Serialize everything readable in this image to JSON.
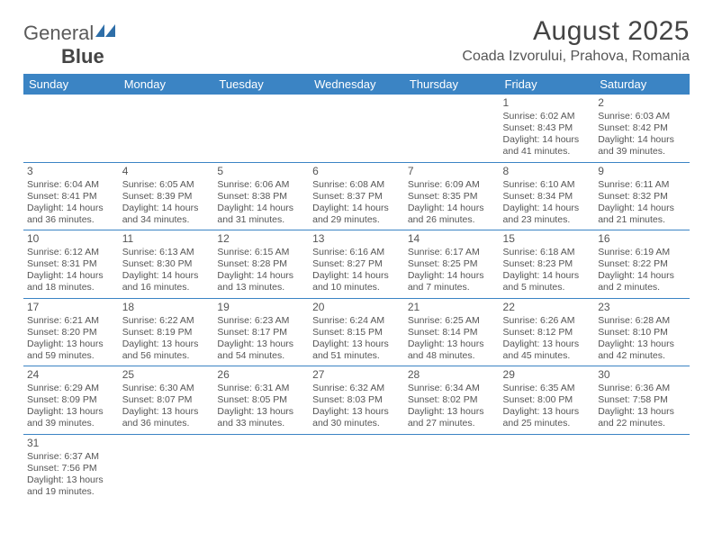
{
  "brand": {
    "part1": "General",
    "part2": "Blue"
  },
  "colors": {
    "header_bg": "#3b84c4",
    "header_text": "#ffffff",
    "rule": "#3b84c4",
    "text": "#555555",
    "title": "#444444",
    "background": "#ffffff"
  },
  "title": "August 2025",
  "location": "Coada Izvorului, Prahova, Romania",
  "weekdays": [
    "Sunday",
    "Monday",
    "Tuesday",
    "Wednesday",
    "Thursday",
    "Friday",
    "Saturday"
  ],
  "weeks": [
    [
      null,
      null,
      null,
      null,
      null,
      {
        "day": "1",
        "sunrise": "Sunrise: 6:02 AM",
        "sunset": "Sunset: 8:43 PM",
        "daylight": "Daylight: 14 hours and 41 minutes."
      },
      {
        "day": "2",
        "sunrise": "Sunrise: 6:03 AM",
        "sunset": "Sunset: 8:42 PM",
        "daylight": "Daylight: 14 hours and 39 minutes."
      }
    ],
    [
      {
        "day": "3",
        "sunrise": "Sunrise: 6:04 AM",
        "sunset": "Sunset: 8:41 PM",
        "daylight": "Daylight: 14 hours and 36 minutes."
      },
      {
        "day": "4",
        "sunrise": "Sunrise: 6:05 AM",
        "sunset": "Sunset: 8:39 PM",
        "daylight": "Daylight: 14 hours and 34 minutes."
      },
      {
        "day": "5",
        "sunrise": "Sunrise: 6:06 AM",
        "sunset": "Sunset: 8:38 PM",
        "daylight": "Daylight: 14 hours and 31 minutes."
      },
      {
        "day": "6",
        "sunrise": "Sunrise: 6:08 AM",
        "sunset": "Sunset: 8:37 PM",
        "daylight": "Daylight: 14 hours and 29 minutes."
      },
      {
        "day": "7",
        "sunrise": "Sunrise: 6:09 AM",
        "sunset": "Sunset: 8:35 PM",
        "daylight": "Daylight: 14 hours and 26 minutes."
      },
      {
        "day": "8",
        "sunrise": "Sunrise: 6:10 AM",
        "sunset": "Sunset: 8:34 PM",
        "daylight": "Daylight: 14 hours and 23 minutes."
      },
      {
        "day": "9",
        "sunrise": "Sunrise: 6:11 AM",
        "sunset": "Sunset: 8:32 PM",
        "daylight": "Daylight: 14 hours and 21 minutes."
      }
    ],
    [
      {
        "day": "10",
        "sunrise": "Sunrise: 6:12 AM",
        "sunset": "Sunset: 8:31 PM",
        "daylight": "Daylight: 14 hours and 18 minutes."
      },
      {
        "day": "11",
        "sunrise": "Sunrise: 6:13 AM",
        "sunset": "Sunset: 8:30 PM",
        "daylight": "Daylight: 14 hours and 16 minutes."
      },
      {
        "day": "12",
        "sunrise": "Sunrise: 6:15 AM",
        "sunset": "Sunset: 8:28 PM",
        "daylight": "Daylight: 14 hours and 13 minutes."
      },
      {
        "day": "13",
        "sunrise": "Sunrise: 6:16 AM",
        "sunset": "Sunset: 8:27 PM",
        "daylight": "Daylight: 14 hours and 10 minutes."
      },
      {
        "day": "14",
        "sunrise": "Sunrise: 6:17 AM",
        "sunset": "Sunset: 8:25 PM",
        "daylight": "Daylight: 14 hours and 7 minutes."
      },
      {
        "day": "15",
        "sunrise": "Sunrise: 6:18 AM",
        "sunset": "Sunset: 8:23 PM",
        "daylight": "Daylight: 14 hours and 5 minutes."
      },
      {
        "day": "16",
        "sunrise": "Sunrise: 6:19 AM",
        "sunset": "Sunset: 8:22 PM",
        "daylight": "Daylight: 14 hours and 2 minutes."
      }
    ],
    [
      {
        "day": "17",
        "sunrise": "Sunrise: 6:21 AM",
        "sunset": "Sunset: 8:20 PM",
        "daylight": "Daylight: 13 hours and 59 minutes."
      },
      {
        "day": "18",
        "sunrise": "Sunrise: 6:22 AM",
        "sunset": "Sunset: 8:19 PM",
        "daylight": "Daylight: 13 hours and 56 minutes."
      },
      {
        "day": "19",
        "sunrise": "Sunrise: 6:23 AM",
        "sunset": "Sunset: 8:17 PM",
        "daylight": "Daylight: 13 hours and 54 minutes."
      },
      {
        "day": "20",
        "sunrise": "Sunrise: 6:24 AM",
        "sunset": "Sunset: 8:15 PM",
        "daylight": "Daylight: 13 hours and 51 minutes."
      },
      {
        "day": "21",
        "sunrise": "Sunrise: 6:25 AM",
        "sunset": "Sunset: 8:14 PM",
        "daylight": "Daylight: 13 hours and 48 minutes."
      },
      {
        "day": "22",
        "sunrise": "Sunrise: 6:26 AM",
        "sunset": "Sunset: 8:12 PM",
        "daylight": "Daylight: 13 hours and 45 minutes."
      },
      {
        "day": "23",
        "sunrise": "Sunrise: 6:28 AM",
        "sunset": "Sunset: 8:10 PM",
        "daylight": "Daylight: 13 hours and 42 minutes."
      }
    ],
    [
      {
        "day": "24",
        "sunrise": "Sunrise: 6:29 AM",
        "sunset": "Sunset: 8:09 PM",
        "daylight": "Daylight: 13 hours and 39 minutes."
      },
      {
        "day": "25",
        "sunrise": "Sunrise: 6:30 AM",
        "sunset": "Sunset: 8:07 PM",
        "daylight": "Daylight: 13 hours and 36 minutes."
      },
      {
        "day": "26",
        "sunrise": "Sunrise: 6:31 AM",
        "sunset": "Sunset: 8:05 PM",
        "daylight": "Daylight: 13 hours and 33 minutes."
      },
      {
        "day": "27",
        "sunrise": "Sunrise: 6:32 AM",
        "sunset": "Sunset: 8:03 PM",
        "daylight": "Daylight: 13 hours and 30 minutes."
      },
      {
        "day": "28",
        "sunrise": "Sunrise: 6:34 AM",
        "sunset": "Sunset: 8:02 PM",
        "daylight": "Daylight: 13 hours and 27 minutes."
      },
      {
        "day": "29",
        "sunrise": "Sunrise: 6:35 AM",
        "sunset": "Sunset: 8:00 PM",
        "daylight": "Daylight: 13 hours and 25 minutes."
      },
      {
        "day": "30",
        "sunrise": "Sunrise: 6:36 AM",
        "sunset": "Sunset: 7:58 PM",
        "daylight": "Daylight: 13 hours and 22 minutes."
      }
    ],
    [
      {
        "day": "31",
        "sunrise": "Sunrise: 6:37 AM",
        "sunset": "Sunset: 7:56 PM",
        "daylight": "Daylight: 13 hours and 19 minutes."
      },
      null,
      null,
      null,
      null,
      null,
      null
    ]
  ]
}
